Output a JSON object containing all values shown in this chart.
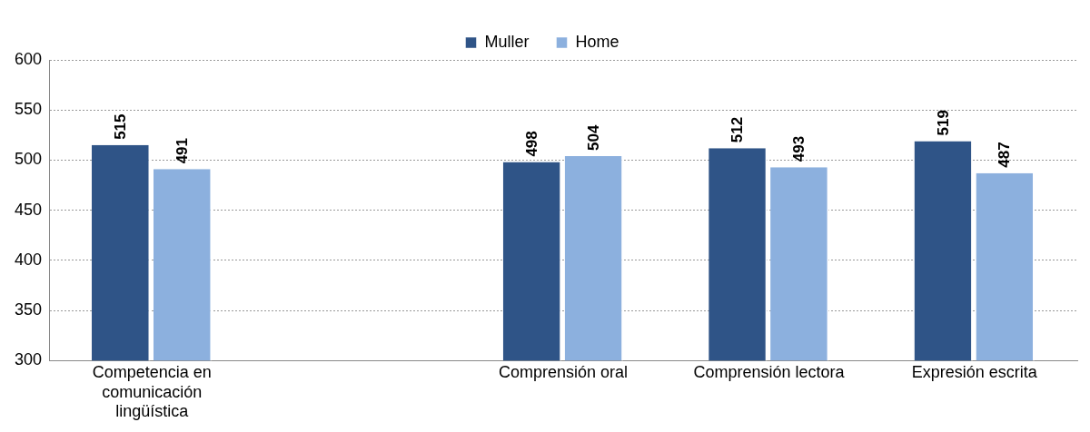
{
  "chart_data": {
    "type": "bar",
    "categories": [
      "Competencia en comunicación lingüística",
      null,
      "Comprensión oral",
      "Comprensión lectora",
      "Expresión escrita"
    ],
    "series": [
      {
        "name": "Muller",
        "color": "#2f5487",
        "values": [
          515,
          null,
          498,
          512,
          519
        ]
      },
      {
        "name": "Home",
        "color": "#8cb0de",
        "values": [
          491,
          null,
          504,
          493,
          487
        ]
      }
    ],
    "ylim": [
      300,
      600
    ],
    "yticks": [
      300,
      350,
      400,
      450,
      500,
      550,
      600
    ],
    "grid": "y",
    "legend": "top",
    "data_labels": true
  }
}
